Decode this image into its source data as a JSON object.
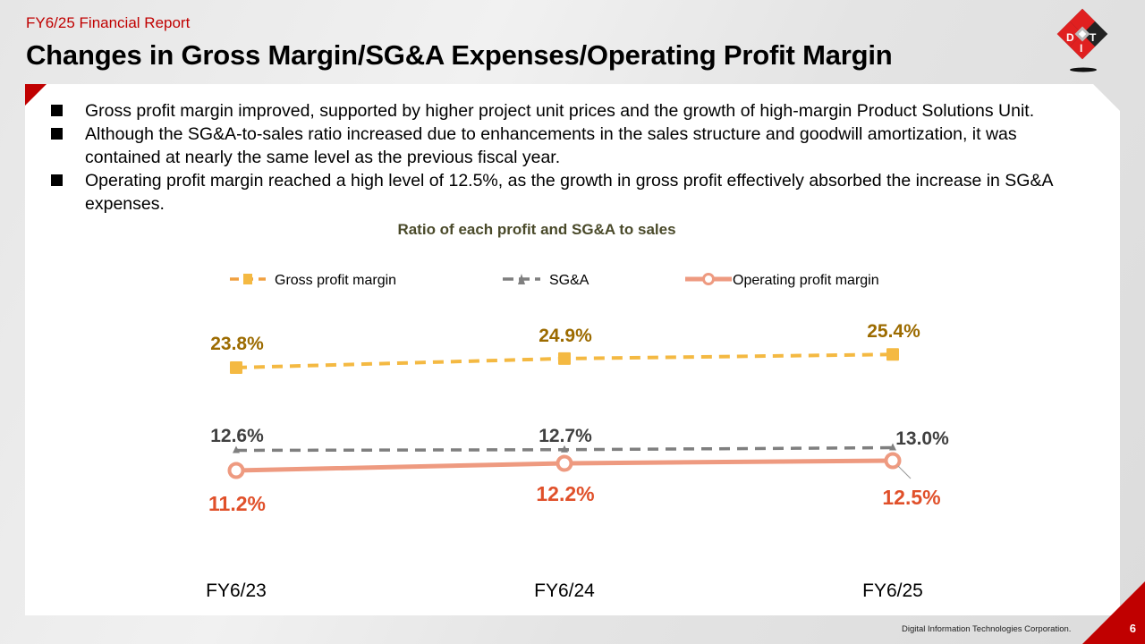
{
  "header": {
    "subtitle": "FY6/25 Financial Report",
    "title": "Changes in Gross Margin/SG&A Expenses/Operating Profit Margin",
    "logo_icon": "dit-cube-logo-icon"
  },
  "bullets": [
    "Gross profit margin improved, supported by higher project unit prices and the growth of high-margin Product Solutions Unit.",
    "Although the SG&A-to-sales ratio increased due to enhancements in the sales structure and goodwill amortization, it was contained at nearly the same level as the previous fiscal year.",
    "Operating profit margin reached a high level of 12.5%, as the growth in gross profit effectively absorbed the increase in SG&A expenses."
  ],
  "footer": {
    "company": "Digital Information Technologies Corporation.",
    "page_number": "6"
  },
  "colors": {
    "brand_red": "#c00000",
    "gross": "#f4b942",
    "gross_label": "#9c6b00",
    "sga": "#7f7f7f",
    "sga_label": "#404040",
    "op": "#ee9a80",
    "op_label": "#e0502a"
  },
  "chart_data": {
    "type": "line",
    "title": "Ratio of each profit and SG&A to sales",
    "categories": [
      "FY6/23",
      "FY6/24",
      "FY6/25"
    ],
    "legend_position": "top",
    "grid": false,
    "unit": "%",
    "series": [
      {
        "name": "Gross profit margin",
        "values": [
          23.8,
          24.9,
          25.4
        ],
        "labels": [
          "23.8%",
          "24.9%",
          "25.4%"
        ],
        "marker": "square",
        "dash": true
      },
      {
        "name": "SG&A",
        "values": [
          12.6,
          12.7,
          13.0
        ],
        "labels": [
          "12.6%",
          "12.7%",
          "13.0%"
        ],
        "marker": "triangle",
        "dash": true
      },
      {
        "name": "Operating profit margin",
        "values": [
          11.2,
          12.2,
          12.5
        ],
        "labels": [
          "11.2%",
          "12.2%",
          "12.5%"
        ],
        "marker": "circle",
        "dash": false
      }
    ]
  }
}
